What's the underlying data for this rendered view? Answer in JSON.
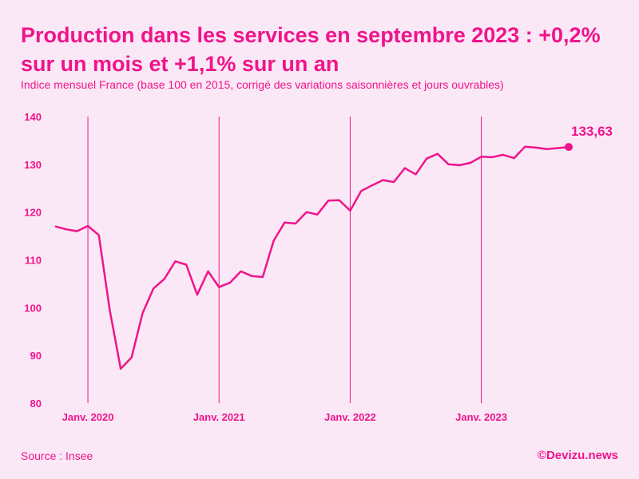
{
  "chart_data": {
    "type": "line",
    "title": "Production dans les services en septembre 2023 : +0,2% sur un mois et +1,1% sur un an",
    "subtitle": "Indice mensuel France (base 100 en 2015, corrigé des variations saisonnières et jours ouvrables)",
    "xlabel": "",
    "ylabel": "",
    "ylim": [
      80,
      140
    ],
    "yticks": [
      80,
      90,
      100,
      110,
      120,
      130,
      140
    ],
    "yticklabels": [
      "80",
      "90",
      "100",
      "110",
      "120",
      "130",
      "140"
    ],
    "xticklabels": [
      "Janv. 2020",
      "Janv. 2021",
      "Janv. 2022",
      "Janv. 2023"
    ],
    "xtick_index": [
      3,
      15,
      27,
      39
    ],
    "x_start": "2019-10",
    "x_end": "2023-09",
    "series": [
      {
        "name": "Production dans les services",
        "values": [
          117.0,
          116.4,
          116.0,
          117.1,
          115.2,
          99.5,
          87.2,
          89.6,
          98.8,
          104.0,
          106.0,
          109.7,
          109.0,
          102.7,
          107.6,
          104.3,
          105.2,
          107.6,
          106.6,
          106.4,
          114.0,
          117.8,
          117.6,
          120.0,
          119.5,
          122.4,
          122.5,
          120.3,
          124.4,
          125.6,
          126.7,
          126.3,
          129.2,
          127.9,
          131.2,
          132.2,
          130.0,
          129.8,
          130.3,
          131.6,
          131.5,
          132.0,
          131.3,
          133.7,
          133.5,
          133.2,
          133.4,
          133.63
        ]
      }
    ],
    "end_label": "133,63",
    "grid": "vertical lines at January of each year",
    "color": "#f0148c"
  },
  "footer": {
    "source": "Source : Insee",
    "credit": "©Devizu.news"
  }
}
